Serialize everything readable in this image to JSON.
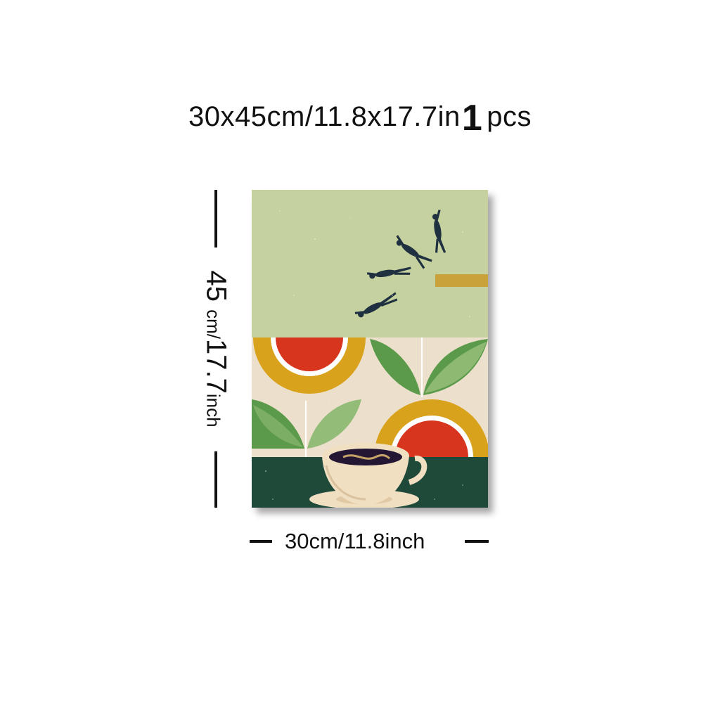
{
  "header": {
    "size_text": "30x45cm/11.8x17.7in",
    "quantity_number": "1",
    "quantity_unit": "pcs"
  },
  "dimensions": {
    "height_number": "45",
    "height_unit": "cm/",
    "height_inch_number": "17.7",
    "height_inch_unit": "inch",
    "width_label": "30cm/11.8inch"
  },
  "poster": {
    "subject": "divers-leaping-from-board-over-sunflowers-and-coffee-cup",
    "colors": {
      "sky": "#c5d19f",
      "board": "#c9a23c",
      "cream": "#ece0cc",
      "ochre": "#d8a21c",
      "red": "#d8351f",
      "leaf_dark": "#5b9a4a",
      "leaf_light": "#93bc78",
      "table": "#1f4a3a",
      "cup": "#f1dfc2",
      "coffee": "#241733",
      "diver": "#1f3040"
    }
  }
}
